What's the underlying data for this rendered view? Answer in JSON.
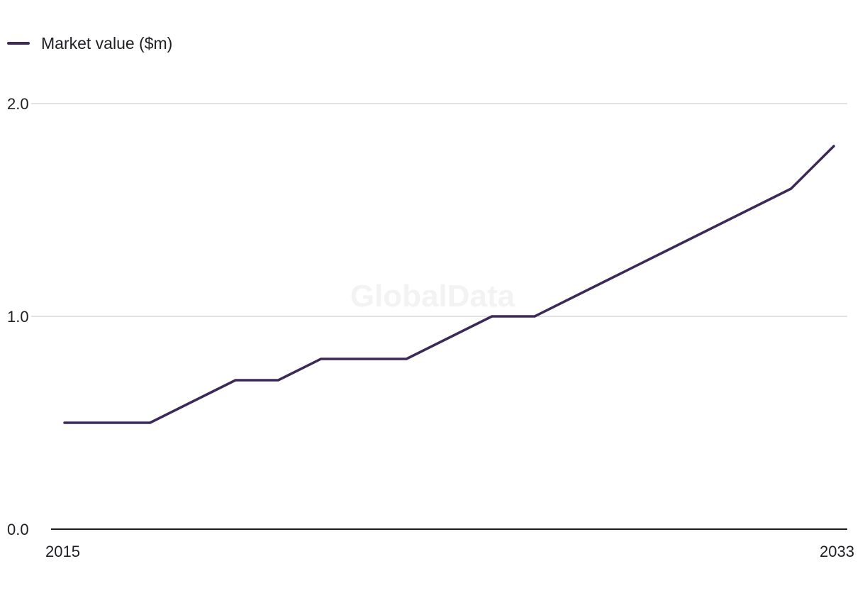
{
  "chart_data": {
    "type": "line",
    "title": "",
    "xlabel": "",
    "ylabel": "",
    "x": [
      2015,
      2016,
      2017,
      2018,
      2019,
      2020,
      2021,
      2022,
      2023,
      2024,
      2025,
      2026,
      2027,
      2028,
      2029,
      2030,
      2031,
      2032,
      2033
    ],
    "series": [
      {
        "name": "Market value ($m)",
        "values": [
          0.5,
          0.5,
          0.5,
          0.6,
          0.7,
          0.7,
          0.8,
          0.8,
          0.8,
          0.9,
          1.0,
          1.0,
          1.1,
          1.2,
          1.3,
          1.4,
          1.5,
          1.6,
          1.8
        ]
      }
    ],
    "ylim": [
      0,
      2.0
    ],
    "y_ticks": [
      "0.0",
      "1.0",
      "2.0"
    ],
    "x_tick_labels": [
      "2015",
      "2033"
    ],
    "grid": true,
    "legend_position": "top-left",
    "watermark": "GlobalData",
    "colors": {
      "line": "#3b2a57",
      "grid": "#d9d9d9",
      "axis": "#1a1a1a",
      "watermark": "#f3f3f3"
    }
  }
}
